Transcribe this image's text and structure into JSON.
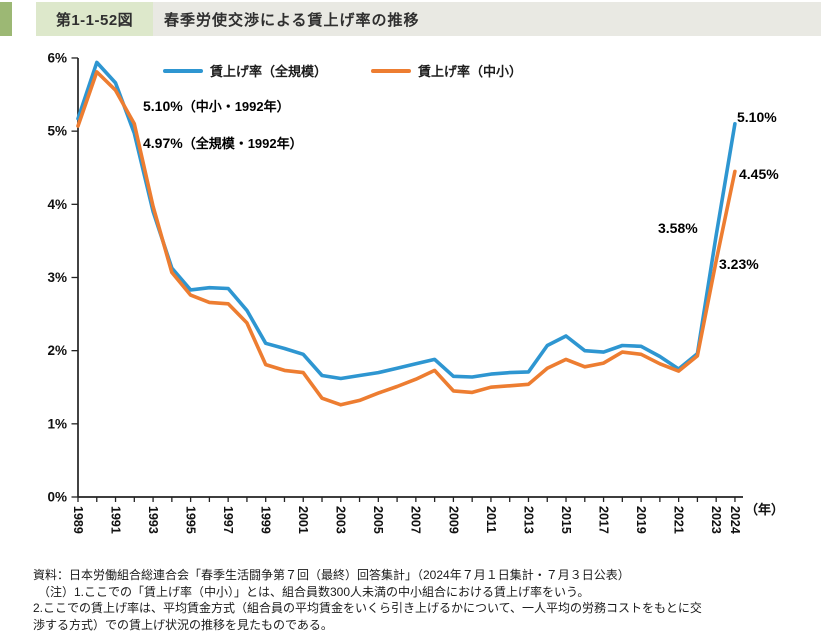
{
  "header": {
    "figure_label": "第1-1-52図",
    "title": "春季労使交渉による賃上げ率の推移"
  },
  "chart_data": {
    "type": "line",
    "title": "春季労使交渉による賃上げ率の推移",
    "grid": "off",
    "legend_position": "top",
    "ylim": [
      0,
      6
    ],
    "ytick_labels": [
      "0%",
      "1%",
      "2%",
      "3%",
      "4%",
      "5%",
      "6%"
    ],
    "x_axis_unit": "（年）",
    "x_years": [
      1989,
      1990,
      1991,
      1992,
      1993,
      1994,
      1995,
      1996,
      1997,
      1998,
      1999,
      2000,
      2001,
      2002,
      2003,
      2004,
      2005,
      2006,
      2007,
      2008,
      2009,
      2010,
      2011,
      2012,
      2013,
      2014,
      2015,
      2016,
      2017,
      2018,
      2019,
      2020,
      2021,
      2022,
      2023,
      2024
    ],
    "xtick_label_years": [
      "1989",
      "1991",
      "1993",
      "1995",
      "1997",
      "1999",
      "2001",
      "2003",
      "2005",
      "2007",
      "2009",
      "2011",
      "2013",
      "2015",
      "2017",
      "2019",
      "2021",
      "2023",
      "2024"
    ],
    "series": [
      {
        "name": "賃上げ率（全規模）",
        "color": "#2e96d1",
        "values": [
          5.17,
          5.94,
          5.66,
          4.97,
          3.9,
          3.13,
          2.83,
          2.86,
          2.85,
          2.55,
          2.1,
          2.03,
          1.95,
          1.66,
          1.62,
          1.66,
          1.7,
          1.76,
          1.82,
          1.88,
          1.65,
          1.64,
          1.68,
          1.7,
          1.71,
          2.07,
          2.2,
          2.0,
          1.98,
          2.07,
          2.06,
          1.92,
          1.75,
          1.96,
          3.58,
          5.1
        ]
      },
      {
        "name": "賃上げ率（中小）",
        "color": "#ed7d31",
        "values": [
          5.07,
          5.81,
          5.56,
          5.1,
          3.97,
          3.07,
          2.76,
          2.66,
          2.64,
          2.38,
          1.81,
          1.73,
          1.7,
          1.35,
          1.26,
          1.32,
          1.42,
          1.51,
          1.61,
          1.73,
          1.45,
          1.43,
          1.5,
          1.52,
          1.54,
          1.76,
          1.88,
          1.78,
          1.83,
          1.98,
          1.95,
          1.82,
          1.72,
          1.93,
          3.23,
          4.45
        ]
      }
    ],
    "annotations": {
      "sme_1992_value": "5.10%",
      "sme_1992_label": "（中小・1992年）",
      "all_1992_value": "4.97%",
      "all_1992_label": "（全規模・1992年）",
      "all_2024": "5.10%",
      "sme_2024": "4.45%",
      "all_2023": "3.58%",
      "sme_2023": "3.23%"
    }
  },
  "footnotes": {
    "source": "資料：日本労働組合総連合会「春季生活闘争第７回（最終）回答集計」（2024年７月１日集計・７月３日公表）",
    "note1": "（注）1.ここでの「賃上げ率（中小）」とは、組合員数300人未満の中小組合における賃上げ率をいう。",
    "note2": "2.ここでの賃上げ率は、平均賃金方式（組合員の平均賃金をいくら引き上げるかについて、一人平均の労務コストをもとに交",
    "note3": "渉する方式）での賃上げ状況の推移を見たものである。"
  }
}
